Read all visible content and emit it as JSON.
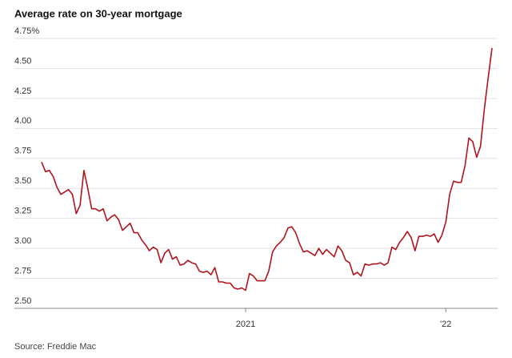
{
  "chart_data": {
    "type": "line",
    "title": "Average rate on 30-year mortgage",
    "source": "Source: Freddie Mac",
    "categories": [
      null,
      null,
      null,
      null,
      null,
      null,
      null,
      null,
      null,
      null,
      null,
      null,
      null,
      null,
      null,
      null,
      null,
      null,
      null,
      null,
      null,
      null,
      null,
      null,
      null,
      null,
      null,
      null,
      null,
      null,
      null,
      null,
      null,
      null,
      null,
      null,
      null,
      null,
      null,
      null,
      null,
      null,
      null,
      null,
      null,
      null,
      null,
      null,
      null,
      null,
      null,
      null,
      null,
      "2021",
      null,
      null,
      null,
      null,
      null,
      null,
      null,
      null,
      null,
      null,
      null,
      null,
      null,
      null,
      null,
      null,
      null,
      null,
      null,
      null,
      null,
      null,
      null,
      null,
      null,
      null,
      null,
      null,
      null,
      null,
      null,
      null,
      null,
      null,
      null,
      null,
      null,
      null,
      null,
      null,
      null,
      null,
      null,
      null,
      null,
      null,
      null,
      null,
      null,
      null,
      null,
      "'22",
      null,
      null,
      null,
      null,
      null,
      null,
      null,
      null,
      null,
      null,
      null,
      null
    ],
    "series": [
      {
        "name": "30-year mortgage rate",
        "color": "#b0141c",
        "values": [
          3.72,
          3.64,
          3.65,
          3.6,
          3.51,
          3.45,
          3.47,
          3.49,
          3.45,
          3.29,
          3.36,
          3.65,
          3.5,
          3.33,
          3.33,
          3.31,
          3.33,
          3.23,
          3.26,
          3.28,
          3.24,
          3.15,
          3.18,
          3.21,
          3.13,
          3.13,
          3.07,
          3.03,
          2.98,
          3.01,
          2.99,
          2.88,
          2.96,
          2.99,
          2.91,
          2.93,
          2.86,
          2.87,
          2.9,
          2.88,
          2.87,
          2.81,
          2.8,
          2.81,
          2.78,
          2.84,
          2.72,
          2.72,
          2.71,
          2.71,
          2.67,
          2.66,
          2.67,
          2.65,
          2.79,
          2.77,
          2.73,
          2.73,
          2.73,
          2.81,
          2.97,
          3.02,
          3.05,
          3.09,
          3.17,
          3.18,
          3.13,
          3.04,
          2.97,
          2.98,
          2.96,
          2.94,
          3.0,
          2.95,
          2.99,
          2.96,
          2.93,
          3.02,
          2.98,
          2.9,
          2.88,
          2.78,
          2.8,
          2.77,
          2.87,
          2.86,
          2.87,
          2.87,
          2.88,
          2.86,
          2.88,
          3.01,
          2.99,
          3.05,
          3.09,
          3.14,
          3.09,
          2.98,
          3.1,
          3.1,
          3.11,
          3.1,
          3.12,
          3.05,
          3.11,
          3.22,
          3.45,
          3.56,
          3.55,
          3.55,
          3.69,
          3.92,
          3.89,
          3.76,
          3.85,
          4.16,
          4.42,
          4.67
        ]
      }
    ],
    "ylim": [
      2.5,
      4.75
    ],
    "yticks": [
      {
        "value": 2.5,
        "label": "2.50"
      },
      2.75,
      {
        "value": 3,
        "label": "3.00"
      },
      3.25,
      {
        "value": 3.5,
        "label": "3.50"
      },
      3.75,
      {
        "value": 4,
        "label": "4.00"
      },
      4.25,
      {
        "value": 4.5,
        "label": "4.50"
      },
      {
        "value": 4.75,
        "label": "4.75%"
      }
    ],
    "grid": true
  }
}
